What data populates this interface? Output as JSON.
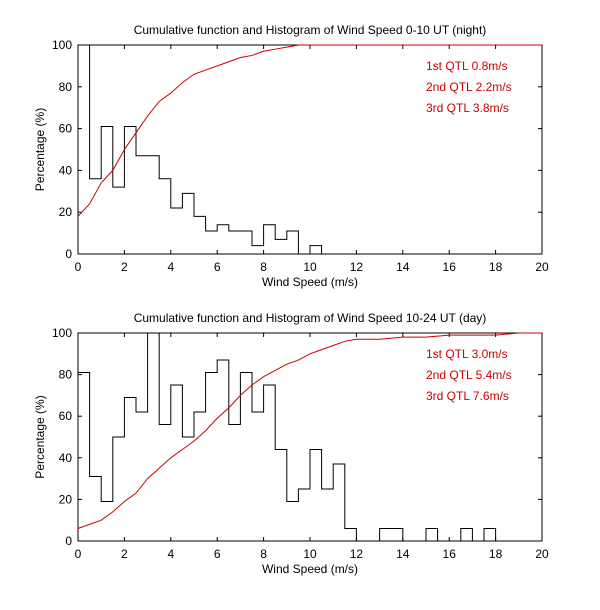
{
  "chart_data": [
    {
      "type": "line",
      "title": "Cumulative function and Histogram of Wind Speed 0-10 UT (night)",
      "xlabel": "Wind Speed (m/s)",
      "ylabel": "Percentage (%)",
      "xlim": [
        0,
        20
      ],
      "ylim": [
        0,
        100
      ],
      "xticks": [
        0,
        2,
        4,
        6,
        8,
        10,
        12,
        14,
        16,
        18,
        20
      ],
      "yticks": [
        0,
        20,
        40,
        60,
        80,
        100
      ],
      "histogram": {
        "name": "Histogram",
        "color": "#000000",
        "bin_width": 0.5,
        "values": [
          100,
          36,
          61,
          32,
          61,
          47,
          47,
          36,
          22,
          29,
          18,
          11,
          14,
          11,
          11,
          4,
          14,
          7,
          11,
          0,
          4,
          0
        ]
      },
      "cumulative": {
        "name": "Cumulative function",
        "color": "#cc0000",
        "x": [
          0,
          0.5,
          1,
          1.5,
          2,
          2.5,
          3,
          3.5,
          4,
          4.5,
          5,
          5.5,
          6,
          6.5,
          7,
          7.5,
          8,
          8.5,
          9,
          9.5,
          10,
          20
        ],
        "y": [
          18,
          24,
          34,
          40,
          50,
          58,
          66,
          73,
          77,
          82,
          86,
          88,
          90,
          92,
          94,
          95,
          97,
          98,
          99,
          100,
          100,
          100
        ]
      },
      "annotations": [
        "1st QTL 0.8m/s",
        "2nd QTL 2.2m/s",
        "3rd QTL 3.8m/s"
      ]
    },
    {
      "type": "line",
      "title": "Cumulative function and Histogram of Wind Speed 10-24 UT (day)",
      "xlabel": "Wind Speed (m/s)",
      "ylabel": "Percentage (%)",
      "xlim": [
        0,
        20
      ],
      "ylim": [
        0,
        100
      ],
      "xticks": [
        0,
        2,
        4,
        6,
        8,
        10,
        12,
        14,
        16,
        18,
        20
      ],
      "yticks": [
        0,
        20,
        40,
        60,
        80,
        100
      ],
      "histogram": {
        "name": "Histogram",
        "color": "#000000",
        "bin_width": 0.5,
        "values": [
          81,
          31,
          19,
          50,
          69,
          62,
          100,
          56,
          75,
          50,
          62,
          81,
          87,
          56,
          81,
          62,
          75,
          44,
          19,
          25,
          44,
          25,
          37,
          6,
          0,
          0,
          6,
          6,
          0,
          0,
          6,
          0,
          0,
          6,
          0,
          6,
          0,
          0,
          0,
          0
        ]
      },
      "cumulative": {
        "name": "Cumulative function",
        "color": "#cc0000",
        "x": [
          0,
          0.5,
          1,
          1.5,
          2,
          2.5,
          3,
          3.5,
          4,
          4.5,
          5,
          5.5,
          6,
          6.5,
          7,
          7.5,
          8,
          8.5,
          9,
          9.5,
          10,
          10.5,
          11,
          11.5,
          12,
          13,
          14,
          15,
          16,
          17,
          18,
          19,
          20
        ],
        "y": [
          6,
          8,
          10,
          14,
          19,
          23,
          30,
          35,
          40,
          44,
          48,
          53,
          59,
          64,
          70,
          75,
          79,
          82,
          85,
          87,
          90,
          92,
          94,
          96,
          97,
          97,
          98,
          98,
          99,
          99,
          99,
          100,
          100
        ]
      },
      "annotations": [
        "1st QTL 3.0m/s",
        "2nd QTL 5.4m/s",
        "3rd QTL 7.6m/s"
      ]
    }
  ]
}
